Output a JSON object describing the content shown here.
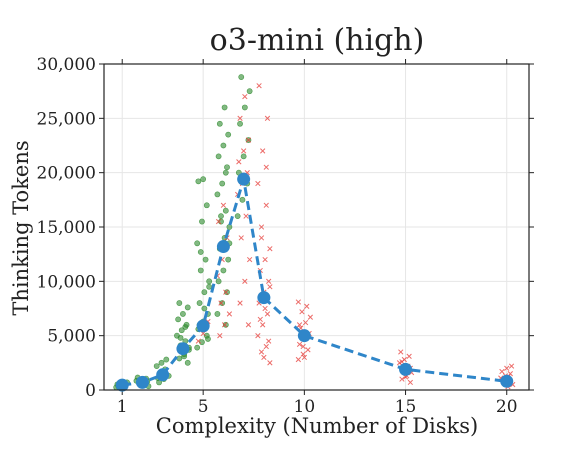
{
  "chart_data": {
    "type": "scatter",
    "title": "o3-mini (high)",
    "xlabel": "Complexity (Number of Disks)",
    "ylabel": "Thinking Tokens",
    "xlim": [
      0.1,
      21.1
    ],
    "ylim": [
      0,
      30000
    ],
    "xticks": [
      1,
      5,
      10,
      15,
      20
    ],
    "xtick_labels": [
      "1",
      "5",
      "10",
      "15",
      "20"
    ],
    "yticks": [
      0,
      5000,
      10000,
      15000,
      20000,
      25000,
      30000
    ],
    "ytick_labels": [
      "0",
      "5,000",
      "10,000",
      "15,000",
      "20,000",
      "25,000",
      "30,000"
    ],
    "grid": true,
    "colors": {
      "correct": "#2e8b2e",
      "incorrect": "#e53935",
      "mean": "#2f86c9"
    },
    "series": [
      {
        "kind": "correct-points",
        "marker": "circle",
        "points": [
          [
            1,
            250
          ],
          [
            1,
            380
          ],
          [
            1,
            450
          ],
          [
            1,
            520
          ],
          [
            1,
            600
          ],
          [
            1,
            700
          ],
          [
            1,
            300
          ],
          [
            1,
            420
          ],
          [
            2,
            350
          ],
          [
            2,
            550
          ],
          [
            2,
            700
          ],
          [
            2,
            850
          ],
          [
            2,
            950
          ],
          [
            2,
            1050
          ],
          [
            2,
            1150
          ],
          [
            2,
            600
          ],
          [
            2,
            800
          ],
          [
            3,
            700
          ],
          [
            3,
            1000
          ],
          [
            3,
            1300
          ],
          [
            3,
            1600
          ],
          [
            3,
            1900
          ],
          [
            3,
            2200
          ],
          [
            3,
            2500
          ],
          [
            3,
            2800
          ],
          [
            3,
            1100
          ],
          [
            3,
            1500
          ],
          [
            4,
            2500
          ],
          [
            4,
            2900
          ],
          [
            4,
            3300
          ],
          [
            4,
            3700
          ],
          [
            4,
            4100
          ],
          [
            4,
            4500
          ],
          [
            4,
            5000
          ],
          [
            4,
            5500
          ],
          [
            4,
            6000
          ],
          [
            4,
            6500
          ],
          [
            4,
            7000
          ],
          [
            4,
            7600
          ],
          [
            4,
            8000
          ],
          [
            4,
            3100
          ],
          [
            4,
            3900
          ],
          [
            4,
            4800
          ],
          [
            4,
            5800
          ],
          [
            5,
            3900
          ],
          [
            5,
            4400
          ],
          [
            5,
            5000
          ],
          [
            5,
            5600
          ],
          [
            5,
            6300
          ],
          [
            5,
            7000
          ],
          [
            5,
            8000
          ],
          [
            5,
            9000
          ],
          [
            5,
            10000
          ],
          [
            5,
            11000
          ],
          [
            5,
            12000
          ],
          [
            5,
            13500
          ],
          [
            5,
            15500
          ],
          [
            5,
            17000
          ],
          [
            5,
            19200
          ],
          [
            5,
            19400
          ],
          [
            5,
            4700
          ],
          [
            5,
            6000
          ],
          [
            5,
            7500
          ],
          [
            5,
            9500
          ],
          [
            5,
            12700
          ],
          [
            6,
            6000
          ],
          [
            6,
            7000
          ],
          [
            6,
            8000
          ],
          [
            6,
            9000
          ],
          [
            6,
            10000
          ],
          [
            6,
            11000
          ],
          [
            6,
            12000
          ],
          [
            6,
            13000
          ],
          [
            6,
            14000
          ],
          [
            6,
            15000
          ],
          [
            6,
            15500
          ],
          [
            6,
            16500
          ],
          [
            6,
            18000
          ],
          [
            6,
            19000
          ],
          [
            6,
            20500
          ],
          [
            6,
            21500
          ],
          [
            6,
            22500
          ],
          [
            6,
            23500
          ],
          [
            6,
            24500
          ],
          [
            6,
            26000
          ],
          [
            6,
            13500
          ],
          [
            6,
            16000
          ],
          [
            6,
            20000
          ],
          [
            7,
            16000
          ],
          [
            7,
            17500
          ],
          [
            7,
            19000
          ],
          [
            7,
            20000
          ],
          [
            7,
            21500
          ],
          [
            7,
            23000
          ],
          [
            7,
            24500
          ],
          [
            7,
            26000
          ],
          [
            7,
            27500
          ],
          [
            7,
            28800
          ]
        ]
      },
      {
        "kind": "incorrect-points",
        "marker": "x",
        "points": [
          [
            5,
            4500
          ],
          [
            5,
            5200
          ],
          [
            5,
            6300
          ],
          [
            6,
            5000
          ],
          [
            6,
            6000
          ],
          [
            6,
            7000
          ],
          [
            6,
            8000
          ],
          [
            6,
            9000
          ],
          [
            6,
            10500
          ],
          [
            6,
            12000
          ],
          [
            6,
            14000
          ],
          [
            6,
            15500
          ],
          [
            6,
            17000
          ],
          [
            7,
            6000
          ],
          [
            7,
            8000
          ],
          [
            7,
            10000
          ],
          [
            7,
            12000
          ],
          [
            7,
            14000
          ],
          [
            7,
            16000
          ],
          [
            7,
            18000
          ],
          [
            7,
            19000
          ],
          [
            7,
            20000
          ],
          [
            7,
            21000
          ],
          [
            7,
            22000
          ],
          [
            7,
            23000
          ],
          [
            7,
            25000
          ],
          [
            7,
            27000
          ],
          [
            8,
            2500
          ],
          [
            8,
            3500
          ],
          [
            8,
            4000
          ],
          [
            8,
            5000
          ],
          [
            8,
            6000
          ],
          [
            8,
            7000
          ],
          [
            8,
            8000
          ],
          [
            8,
            9000
          ],
          [
            8,
            10000
          ],
          [
            8,
            11000
          ],
          [
            8,
            12000
          ],
          [
            8,
            13000
          ],
          [
            8,
            15000
          ],
          [
            8,
            17000
          ],
          [
            8,
            19000
          ],
          [
            8,
            22000
          ],
          [
            8,
            25000
          ],
          [
            8,
            28000
          ],
          [
            8,
            3000
          ],
          [
            8,
            4500
          ],
          [
            8,
            6500
          ],
          [
            8,
            7500
          ],
          [
            8,
            9500
          ],
          [
            8,
            14000
          ],
          [
            8,
            20500
          ],
          [
            10,
            2800
          ],
          [
            10,
            3300
          ],
          [
            10,
            3700
          ],
          [
            10,
            4200
          ],
          [
            10,
            4700
          ],
          [
            10,
            5200
          ],
          [
            10,
            5700
          ],
          [
            10,
            6200
          ],
          [
            10,
            6700
          ],
          [
            10,
            7200
          ],
          [
            10,
            7700
          ],
          [
            10,
            8100
          ],
          [
            10,
            4000
          ],
          [
            10,
            5000
          ],
          [
            10,
            6000
          ],
          [
            10,
            3000
          ],
          [
            15,
            700
          ],
          [
            15,
            1000
          ],
          [
            15,
            1300
          ],
          [
            15,
            1600
          ],
          [
            15,
            1900
          ],
          [
            15,
            2200
          ],
          [
            15,
            2500
          ],
          [
            15,
            2800
          ],
          [
            15,
            3100
          ],
          [
            15,
            3500
          ],
          [
            15,
            1200
          ],
          [
            15,
            2000
          ],
          [
            15,
            2600
          ],
          [
            20,
            300
          ],
          [
            20,
            500
          ],
          [
            20,
            700
          ],
          [
            20,
            900
          ],
          [
            20,
            1100
          ],
          [
            20,
            1300
          ],
          [
            20,
            1500
          ],
          [
            20,
            1700
          ],
          [
            20,
            2000
          ],
          [
            20,
            2200
          ],
          [
            20,
            800
          ],
          [
            20,
            1200
          ]
        ]
      },
      {
        "kind": "mean-line",
        "marker": "circle",
        "line_style": "dashed",
        "x": [
          1,
          2,
          3,
          4,
          5,
          6,
          7,
          8,
          10,
          15,
          20
        ],
        "values": [
          450,
          700,
          1400,
          3800,
          5900,
          13200,
          19400,
          8500,
          5000,
          1900,
          800
        ]
      }
    ]
  }
}
